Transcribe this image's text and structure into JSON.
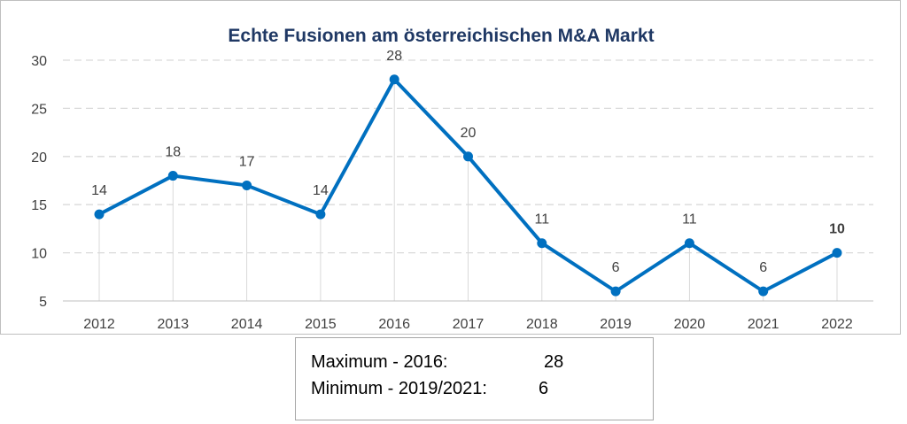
{
  "chart_data": {
    "type": "line",
    "title": "Echte Fusionen am österreichischen M&A Markt",
    "categories": [
      "2012",
      "2013",
      "2014",
      "2015",
      "2016",
      "2017",
      "2018",
      "2019",
      "2020",
      "2021",
      "2022"
    ],
    "values": [
      14,
      18,
      17,
      14,
      28,
      20,
      11,
      6,
      11,
      6,
      10
    ],
    "data_labels": [
      "14",
      "18",
      "17",
      "14",
      "28",
      "20",
      "11",
      "6",
      "11",
      "6",
      "10"
    ],
    "bold_labels": [
      false,
      false,
      false,
      false,
      false,
      false,
      false,
      false,
      false,
      false,
      true
    ],
    "ylim": [
      5,
      30
    ],
    "yticks": [
      "5",
      "10",
      "15",
      "20",
      "25",
      "30"
    ],
    "xlabel": "",
    "ylabel": "",
    "grid": "horizontal-dashed",
    "line_color": "#0070c0"
  },
  "summary": {
    "max_label": "Maximum - 2016:",
    "max_value": "28",
    "min_label": "Minimum - 2019/2021:",
    "min_value": "6"
  }
}
